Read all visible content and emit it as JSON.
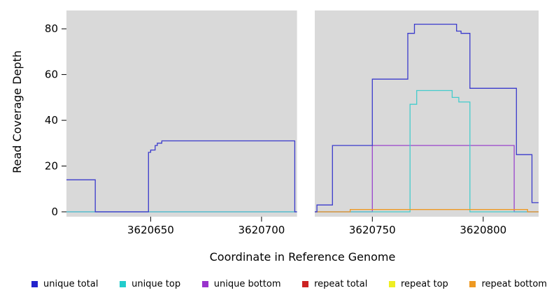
{
  "chart_data": {
    "type": "line",
    "title": "",
    "xlabel": "Coordinate in Reference Genome",
    "ylabel": "Read Coverage Depth",
    "xlim": [
      3620612,
      3620825
    ],
    "ylim": [
      0,
      88
    ],
    "x_ticks": [
      3620650,
      3620700,
      3620750,
      3620800
    ],
    "y_ticks": [
      0,
      20,
      40,
      60,
      80
    ],
    "panel_bg": "#d9d9d9",
    "gap_region": {
      "from": 3620716,
      "to": 3620724,
      "color": "#ffffff"
    },
    "line_style": "step",
    "series": [
      {
        "name": "unique bottom",
        "color": "#9944cc",
        "points": [
          [
            3620612,
            0
          ],
          [
            3620750,
            29
          ],
          [
            3620814,
            0
          ],
          [
            3620825,
            0
          ]
        ]
      },
      {
        "name": "unique top",
        "color": "#44cccc",
        "points": [
          [
            3620612,
            0
          ],
          [
            3620767,
            47
          ],
          [
            3620770,
            53
          ],
          [
            3620786,
            50
          ],
          [
            3620789,
            48
          ],
          [
            3620794,
            0
          ],
          [
            3620825,
            0
          ]
        ]
      },
      {
        "name": "repeat bottom",
        "color": "#ee9922",
        "points": [
          [
            3620724,
            0
          ],
          [
            3620740,
            1
          ],
          [
            3620820,
            0
          ],
          [
            3620825,
            0
          ]
        ]
      },
      {
        "name": "unique total",
        "color": "#3a3acc",
        "points": [
          [
            3620612,
            14
          ],
          [
            3620625,
            0
          ],
          [
            3620649,
            26
          ],
          [
            3620650,
            27
          ],
          [
            3620652,
            29
          ],
          [
            3620653,
            30
          ],
          [
            3620655,
            31
          ],
          [
            3620715,
            0
          ],
          [
            3620725,
            3
          ],
          [
            3620732,
            29
          ],
          [
            3620750,
            58
          ],
          [
            3620766,
            78
          ],
          [
            3620769,
            82
          ],
          [
            3620788,
            79
          ],
          [
            3620790,
            78
          ],
          [
            3620794,
            54
          ],
          [
            3620815,
            25
          ],
          [
            3620822,
            4
          ],
          [
            3620825,
            4
          ]
        ]
      }
    ],
    "legend": [
      {
        "label": "unique total",
        "color": "#2222cc"
      },
      {
        "label": "unique top",
        "color": "#22cccc"
      },
      {
        "label": "unique bottom",
        "color": "#9933cc"
      },
      {
        "label": "repeat total",
        "color": "#cc2222"
      },
      {
        "label": "repeat top",
        "color": "#eeee22"
      },
      {
        "label": "repeat bottom",
        "color": "#ee9922"
      }
    ]
  }
}
